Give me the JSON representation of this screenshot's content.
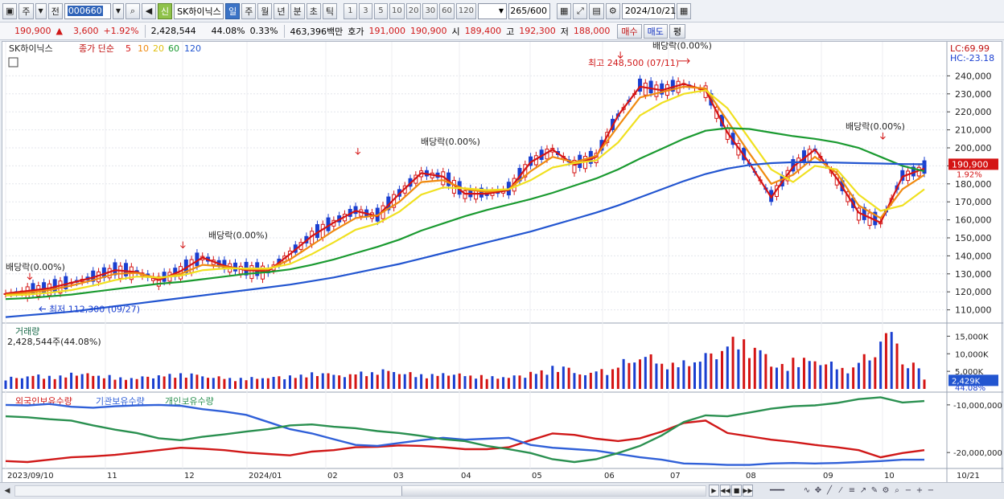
{
  "toolbar": {
    "tabs": [
      "주",
      "전"
    ],
    "stock_code": "000660",
    "new_badge": "신",
    "stock_name": "SK하이닉스",
    "periods": [
      "일",
      "주",
      "월",
      "년",
      "분",
      "초",
      "틱"
    ],
    "active_period": "일",
    "intervals": [
      "1",
      "3",
      "5",
      "10",
      "20",
      "30",
      "60",
      "120"
    ],
    "count": "265",
    "count_total": "/600",
    "date": "2024/10/21"
  },
  "quote": {
    "price": "190,900",
    "arrow": "▲",
    "change": "3,600",
    "change_pct": "+1.92%",
    "volume": "2,428,544",
    "volume_ratio": "44.08%",
    "turnover": "0.33%",
    "trade_value": "463,396백만",
    "bid_label": "호가",
    "bid": "191,000",
    "ask": "190,900",
    "open_label": "시",
    "open": "189,400",
    "high_label": "고",
    "high": "192,300",
    "low_label": "저",
    "low": "188,000",
    "buy_button": "매수",
    "sell_button": "매도",
    "eval_button": "평"
  },
  "price_panel": {
    "name": "SK하이닉스",
    "indicator_title": "종가 단순",
    "ma_labels": [
      "5",
      "10",
      "20",
      "60",
      "120"
    ],
    "ma_colors": [
      "#d41414",
      "#f08a10",
      "#f0e020",
      "#1a9a30",
      "#2255d0"
    ],
    "lc": "LC:69.99",
    "hc": "HC:-23.18",
    "y_ticks": [
      "240,000",
      "230,000",
      "220,000",
      "210,000",
      "200,000",
      "190,000",
      "180,000",
      "170,000",
      "160,000",
      "150,000",
      "140,000",
      "130,000",
      "120,000",
      "110,000"
    ],
    "price_tag": "190,900",
    "price_tag_pct": "1.92%",
    "annotations": [
      "배당락(0.00%)",
      "배당락(0.00%)",
      "배당락(0.00%)",
      "배당락(0.00%)",
      "배당락(0.00%)"
    ],
    "high_note": "최고 248,500 (07/11)",
    "low_note": "최저 112,300 (09/27)"
  },
  "volume_panel": {
    "title": "거래량",
    "value": "2,428,544주(44.08%)",
    "y_ticks": [
      "15,000K",
      "10,000K",
      "5,000K"
    ],
    "tag": "2,429K",
    "tag_pct": "44.08%"
  },
  "holdings_panel": {
    "legend": [
      "외국인보유수량",
      "기관보유수량",
      "개인보유수량"
    ],
    "colors": [
      "#d01818",
      "#3060d8",
      "#2a9050"
    ],
    "y_ticks": [
      "-10,000,000",
      "-20,000,000"
    ]
  },
  "x_axis": [
    "2023/09/10",
    "11",
    "12",
    "2024/01",
    "02",
    "03",
    "04",
    "05",
    "06",
    "07",
    "08",
    "09",
    "10"
  ],
  "x_right_label": "10/21",
  "chart_data": {
    "type": "candlestick",
    "series": [
      {
        "name": "5",
        "values": [
          119000,
          120500,
          122000,
          125000,
          128000,
          132000,
          131000,
          126500,
          131500,
          139000,
          134500,
          132000,
          131500,
          141000,
          151000,
          158500,
          165000,
          162000,
          174500,
          186000,
          184000,
          174500,
          174500,
          176500,
          192000,
          199000,
          190500,
          195000,
          218000,
          234000,
          232000,
          235500,
          232000,
          208500,
          191500,
          172500,
          189500,
          199000,
          183000,
          164000,
          158500,
          184000,
          188500
        ]
      },
      {
        "name": "10",
        "values": [
          118500,
          119500,
          121000,
          123500,
          126500,
          130000,
          130500,
          127500,
          130000,
          135000,
          134000,
          132500,
          132500,
          138000,
          146000,
          154000,
          161000,
          162500,
          170000,
          181000,
          182000,
          177000,
          175500,
          177000,
          187000,
          195000,
          192000,
          195500,
          212000,
          228000,
          231000,
          234000,
          233000,
          215000,
          197000,
          180000,
          185000,
          195000,
          186000,
          168000,
          161000,
          177000,
          185000
        ]
      },
      {
        "name": "20",
        "values": [
          118000,
          118500,
          119500,
          121000,
          123500,
          126500,
          128500,
          128000,
          129000,
          132000,
          133000,
          133000,
          133000,
          135500,
          141000,
          147500,
          154500,
          158000,
          164500,
          174000,
          178000,
          177500,
          176500,
          177000,
          182000,
          189000,
          191500,
          193000,
          203000,
          218000,
          225000,
          230000,
          232000,
          222000,
          205000,
          188000,
          181000,
          190000,
          188000,
          174000,
          165000,
          168000,
          177000
        ]
      },
      {
        "name": "60",
        "values": [
          116000,
          116500,
          117500,
          118500,
          120000,
          121500,
          123000,
          124500,
          125500,
          127000,
          128500,
          130000,
          131000,
          132500,
          135000,
          138000,
          141500,
          145000,
          149000,
          154000,
          158000,
          162000,
          165500,
          168500,
          171500,
          175000,
          179000,
          183000,
          188000,
          194000,
          199500,
          205000,
          209500,
          211000,
          210500,
          208500,
          206500,
          205000,
          203000,
          200000,
          195000,
          190000,
          187000
        ]
      },
      {
        "name": "120",
        "values": [
          106000,
          107000,
          108000,
          109000,
          110500,
          112000,
          113500,
          115000,
          116500,
          118000,
          119500,
          121000,
          122500,
          124000,
          126000,
          128000,
          130500,
          133000,
          135500,
          138500,
          141500,
          144500,
          147500,
          150500,
          153500,
          157000,
          160500,
          164000,
          168000,
          172500,
          177000,
          181500,
          185500,
          188500,
          190500,
          191500,
          192000,
          192000,
          191800,
          191500,
          191300,
          191000,
          190900
        ]
      }
    ],
    "volume_k": [
      3200,
      3800,
      3500,
      4200,
      3600,
      3000,
      3400,
      3900,
      4100,
      3300,
      2900,
      3100,
      3400,
      3700,
      4300,
      3800,
      4500,
      5200,
      4400,
      3900,
      4100,
      3600,
      3300,
      3700,
      4800,
      6000,
      4200,
      5200,
      7800,
      9200,
      6800,
      7400,
      9800,
      13500,
      11000,
      6500,
      8200,
      7200,
      5600,
      9000,
      15500,
      6800,
      2429
    ],
    "foreign_holding": [
      -21800000,
      -22000000,
      -21500000,
      -21000000,
      -20800000,
      -20500000,
      -20000000,
      -19500000,
      -19000000,
      -19200000,
      -19500000,
      -20000000,
      -20300000,
      -20600000,
      -19800000,
      -19500000,
      -18900000,
      -18800000,
      -18500000,
      -18600000,
      -18900000,
      -19300000,
      -19300000,
      -18900000,
      -17400000,
      -16000000,
      -16300000,
      -17100000,
      -17600000,
      -17000000,
      -15600000,
      -13800000,
      -13300000,
      -15900000,
      -16600000,
      -17300000,
      -17800000,
      -18400000,
      -18900000,
      -19500000,
      -21000000,
      -20100000,
      -19500000
    ],
    "institution_holding": [
      -10000000,
      -10100000,
      -9800000,
      -10400000,
      -10600000,
      -10300000,
      -10100000,
      -10000000,
      -10200000,
      -10900000,
      -11400000,
      -12100000,
      -13600000,
      -15100000,
      -16000000,
      -17200000,
      -18400000,
      -18600000,
      -18000000,
      -17400000,
      -16900000,
      -17300000,
      -17100000,
      -16900000,
      -18400000,
      -19000000,
      -19300000,
      -19600000,
      -20300000,
      -21000000,
      -21500000,
      -22300000,
      -22400000,
      -22600000,
      -22600000,
      -22300000,
      -22200000,
      -22300000,
      -22200000,
      -22000000,
      -21800000,
      -21500000,
      -21500000
    ],
    "individual_holding": [
      -12400000,
      -12600000,
      -13000000,
      -13300000,
      -14300000,
      -15200000,
      -15900000,
      -17000000,
      -17400000,
      -16700000,
      -16200000,
      -15600000,
      -15100000,
      -14300000,
      -14100000,
      -14600000,
      -14900000,
      -15500000,
      -15900000,
      -16500000,
      -17200000,
      -17600000,
      -18600000,
      -19300000,
      -20100000,
      -21400000,
      -22000000,
      -21400000,
      -20100000,
      -18600000,
      -16400000,
      -13600000,
      -12200000,
      -12400000,
      -11600000,
      -10800000,
      -10300000,
      -10100000,
      -9600000,
      -8800000,
      -8400000,
      -9500000,
      -9200000
    ]
  }
}
